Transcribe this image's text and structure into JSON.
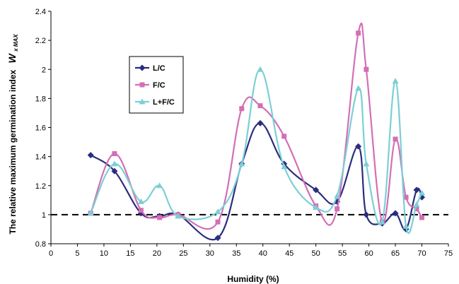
{
  "chart_data": {
    "type": "line",
    "xlabel": "Humidity (%)",
    "ylabel": "The relative maximum germination index",
    "ylabel_symbol": "W",
    "ylabel_subscript": "x MAX",
    "xlim": [
      0,
      75
    ],
    "ylim": [
      0.8,
      2.4
    ],
    "xticks": [
      0,
      5,
      10,
      15,
      20,
      25,
      30,
      35,
      40,
      45,
      50,
      55,
      60,
      65,
      70,
      75
    ],
    "yticks": [
      0.8,
      1,
      1.2,
      1.4,
      1.6,
      1.8,
      2,
      2.2,
      2.4
    ],
    "ytick_labels": [
      "0.8",
      "1",
      "1.2",
      "1.4",
      "1.6",
      "1.8",
      "2",
      "2.2",
      "2.4"
    ],
    "grid": false,
    "legend_position": "upper-left",
    "reference_line": {
      "y": 1.0,
      "style": "dashed"
    },
    "series": [
      {
        "name": "L/C",
        "color": "#2b2d7e",
        "marker": "diamond",
        "x": [
          7.5,
          12,
          17,
          20.5,
          24,
          31.5,
          36,
          39.5,
          44,
          50,
          54,
          58,
          59.5,
          62.5,
          65,
          67,
          69,
          70
        ],
        "y": [
          1.41,
          1.3,
          1.01,
          0.99,
          1.0,
          0.84,
          1.35,
          1.63,
          1.35,
          1.17,
          1.09,
          1.47,
          1.0,
          0.94,
          1.01,
          0.9,
          1.17,
          1.12
        ]
      },
      {
        "name": "F/C",
        "color": "#d36fb5",
        "marker": "square",
        "x": [
          7.5,
          12,
          17,
          20.5,
          24,
          31.5,
          36,
          39.5,
          44,
          50,
          54,
          58,
          59.5,
          62.5,
          65,
          67,
          69,
          70
        ],
        "y": [
          1.01,
          1.42,
          1.03,
          0.98,
          1.0,
          0.95,
          1.73,
          1.75,
          1.54,
          1.06,
          1.04,
          2.25,
          2.0,
          0.95,
          1.52,
          1.12,
          1.04,
          0.98
        ]
      },
      {
        "name": "L+F/C",
        "color": "#7ccfd6",
        "marker": "triangle",
        "x": [
          7.5,
          12,
          17,
          20.5,
          24,
          31.5,
          36,
          39.5,
          44,
          50,
          54,
          58,
          59.5,
          62.5,
          65,
          67,
          69,
          70
        ],
        "y": [
          1.01,
          1.35,
          1.09,
          1.2,
          0.99,
          1.02,
          1.35,
          2.0,
          1.33,
          1.05,
          1.13,
          1.87,
          1.35,
          0.95,
          1.92,
          0.92,
          1.07,
          1.15
        ]
      }
    ]
  }
}
